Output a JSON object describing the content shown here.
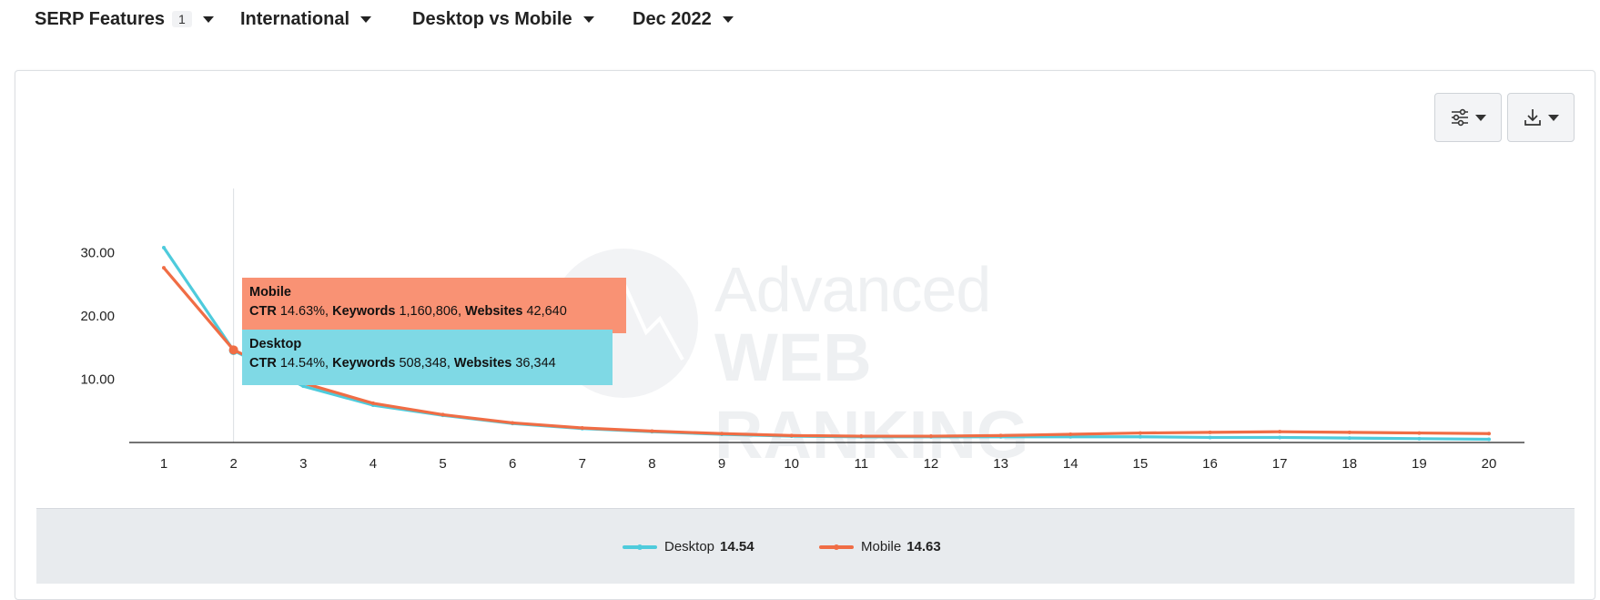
{
  "filters": [
    {
      "label": "SERP Features",
      "badge": "1"
    },
    {
      "label": "International"
    },
    {
      "label": "Desktop vs Mobile"
    },
    {
      "label": "Dec 2022"
    }
  ],
  "toolbar": {
    "settings_icon": "sliders-icon",
    "download_icon": "download-icon"
  },
  "watermark": {
    "line1": "Advanced",
    "line2": "WEB RANKING"
  },
  "tooltip": {
    "mobile": {
      "title": "Mobile",
      "ctr_label": "CTR",
      "ctr": "14.63%,",
      "keywords_label": "Keywords",
      "keywords": "1,160,806,",
      "websites_label": "Websites",
      "websites": "42,640"
    },
    "desktop": {
      "title": "Desktop",
      "ctr_label": "CTR",
      "ctr": "14.54%,",
      "keywords_label": "Keywords",
      "keywords": "508,348,",
      "websites_label": "Websites",
      "websites": "36,344"
    }
  },
  "legend": [
    {
      "name": "Desktop",
      "value": "14.54"
    },
    {
      "name": "Mobile",
      "value": "14.63"
    }
  ],
  "chart_data": {
    "type": "line",
    "x": [
      1,
      2,
      3,
      4,
      5,
      6,
      7,
      8,
      9,
      10,
      11,
      12,
      13,
      14,
      15,
      16,
      17,
      18,
      19,
      20
    ],
    "yticks": [
      "10.00",
      "20.00",
      "30.00"
    ],
    "ylim": [
      0,
      40
    ],
    "hover_x": 2,
    "series": [
      {
        "name": "Desktop",
        "color": "#4ecbdc",
        "values": [
          30.8,
          14.54,
          8.9,
          5.9,
          4.3,
          3.0,
          2.2,
          1.7,
          1.3,
          1.0,
          0.9,
          0.9,
          0.9,
          0.9,
          0.9,
          0.8,
          0.8,
          0.7,
          0.6,
          0.5
        ]
      },
      {
        "name": "Mobile",
        "color": "#f06d45",
        "values": [
          27.6,
          14.63,
          9.4,
          6.2,
          4.4,
          3.1,
          2.3,
          1.8,
          1.4,
          1.1,
          1.0,
          1.0,
          1.1,
          1.3,
          1.5,
          1.6,
          1.7,
          1.6,
          1.5,
          1.4
        ]
      }
    ]
  }
}
